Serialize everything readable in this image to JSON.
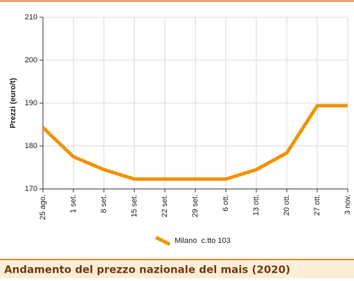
{
  "chart_data": {
    "type": "line",
    "title": "Andamento del prezzo nazionale del mais (2020)",
    "y_label": "Prezzi (euro/t)",
    "categories": [
      "25 ago.",
      "1 set.",
      "8 set.",
      "15 set.",
      "22 set.",
      "29 set.",
      "6 ott.",
      "13 ott.",
      "20 ott.",
      "27 ott.",
      "3 nov."
    ],
    "series": [
      {
        "name": "Milano  c.tto 103",
        "color": "#f39200",
        "values": [
          184.3,
          177.5,
          174.5,
          172.3,
          172.3,
          172.3,
          172.3,
          174.5,
          178.4,
          189.4,
          189.4
        ]
      }
    ],
    "ylim": [
      170,
      210
    ],
    "yticks": [
      170,
      180,
      190,
      200,
      210
    ],
    "grid": true
  }
}
